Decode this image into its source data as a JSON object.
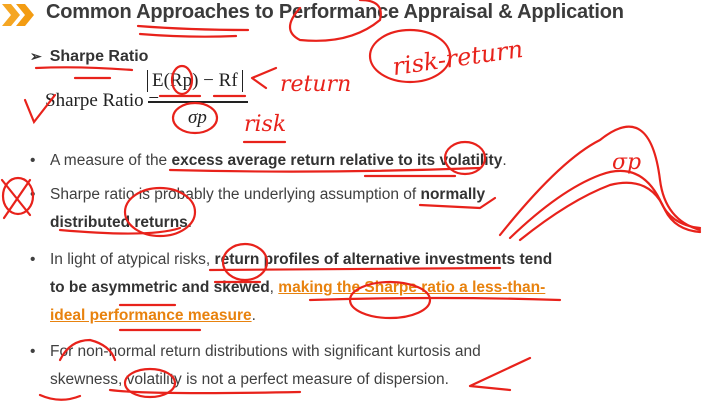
{
  "slide": {
    "title": "Common Approaches to Performance Appraisal & Application",
    "subheading": "Sharpe Ratio",
    "formula": {
      "lhs": "Sharpe Ratio =",
      "numerator": "E(Rp) − Rf",
      "denominator": "σp"
    },
    "bullets": [
      {
        "parts": [
          "A measure of the ",
          "excess average return relative to its volatility",
          "."
        ]
      },
      {
        "parts": [
          "Sharpe ratio is probably the underlying assumption of ",
          "normally distributed returns",
          "."
        ]
      },
      {
        "parts": [
          "In light of atypical risks, ",
          "return profiles of alternative investments tend to be asymmetric and skewed",
          ", ",
          "making the Sharpe ratio a less-than-ideal performance measure",
          "."
        ]
      },
      {
        "parts": [
          "For non-normal return distributions with significant kurtosis and skewness, volatility is not a perfect measure of dispersion."
        ]
      }
    ],
    "accent_color": "#f39c12",
    "highlight_color": "#e8820e"
  },
  "annotations": {
    "ink_color": "#e8221b",
    "risk_return": "risk-return",
    "return": "return",
    "risk": "risk",
    "sigma_p": "σp"
  }
}
